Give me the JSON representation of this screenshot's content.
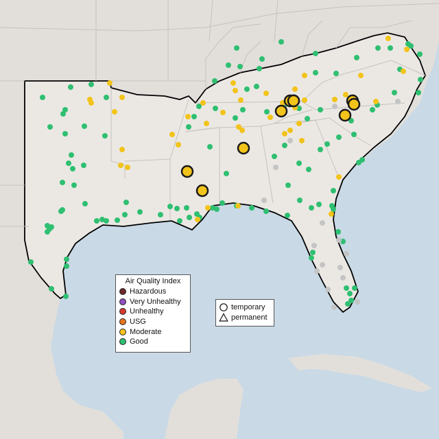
{
  "colors": {
    "water": "#c9d9e6",
    "land": "#ebe8e4",
    "land_outside": "#e2dfdb",
    "border": "#c5c2be",
    "region_outline": "#000000",
    "good": "#2fbf71",
    "moderate": "#f2c31a",
    "usg": "#e8731f",
    "unhealthy": "#d83a2f",
    "very_unhealthy": "#8f4fc2",
    "hazardous": "#6e2a2a",
    "no_data": "#c4c4c4"
  },
  "legend": {
    "title": "Air Quality Index",
    "items": [
      {
        "key": "hazardous",
        "label": "Hazardous",
        "color": "#6e2a2a"
      },
      {
        "key": "very_unhealthy",
        "label": "Very Unhealthy",
        "color": "#8f4fc2"
      },
      {
        "key": "unhealthy",
        "label": "Unhealthy",
        "color": "#d83a2f"
      },
      {
        "key": "usg",
        "label": "USG",
        "color": "#e8731f"
      },
      {
        "key": "moderate",
        "label": "Moderate",
        "color": "#f2c31a"
      },
      {
        "key": "good",
        "label": "Good",
        "color": "#2fbf71"
      }
    ],
    "site_types": [
      {
        "key": "temporary",
        "label": "temporary",
        "icon": "circle-outline-icon"
      },
      {
        "key": "permanent",
        "label": "permanent",
        "icon": "triangle-outline-icon"
      }
    ]
  },
  "monitors": {
    "temporary_moderate_count": 10,
    "categories_shown": [
      "good",
      "moderate",
      "no_data"
    ]
  }
}
